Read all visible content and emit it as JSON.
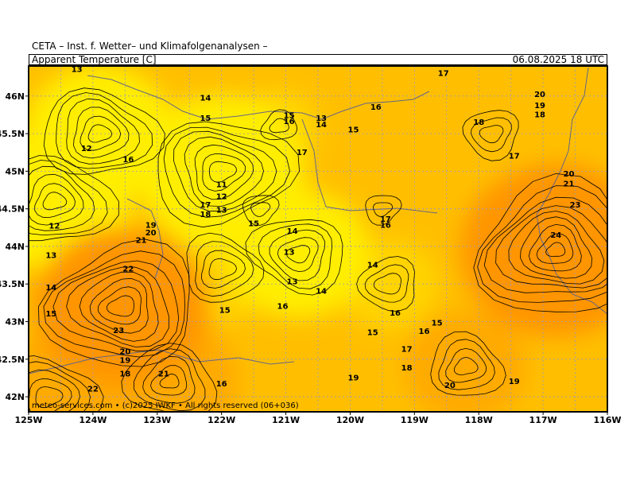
{
  "header": {
    "line1": "CETA – Inst. f. Wetter– und Klimafolgenanalysen –",
    "parameter": "Apparent Temperature [C]",
    "datetime": "06.08.2025  18 UTC"
  },
  "footer": {
    "credit": "meteo-services.com • (c)2025 IWKF • All rights reserved (06+036)"
  },
  "map": {
    "lon_range": [
      -125,
      -116
    ],
    "lat_range": [
      41.8,
      46.4
    ],
    "lon_ticks": [
      "125W",
      "124W",
      "123W",
      "122W",
      "121W",
      "120W",
      "119W",
      "118W",
      "117W",
      "116W"
    ],
    "lat_ticks": [
      {
        "lat": 46.0,
        "label": "46N"
      },
      {
        "lat": 45.5,
        "label": "45.5N"
      },
      {
        "lat": 45.0,
        "label": "45N"
      },
      {
        "lat": 44.5,
        "label": "44.5N"
      },
      {
        "lat": 44.0,
        "label": "44N"
      },
      {
        "lat": 43.5,
        "label": "43.5N"
      },
      {
        "lat": 43.0,
        "label": "43N"
      },
      {
        "lat": 42.5,
        "label": "42.5N"
      },
      {
        "lat": 42.0,
        "label": "42N"
      }
    ],
    "colors": {
      "t11": "#ffee00",
      "t14": "#ffd400",
      "t17": "#ffbf00",
      "t20": "#ffaa00",
      "t23": "#ff9500",
      "grid": "#9999bb",
      "border": "#666688",
      "contour": "#000000"
    },
    "contour_labels": [
      {
        "lon": -124.25,
        "lat": 46.35,
        "value": "13"
      },
      {
        "lon": -122.25,
        "lat": 45.97,
        "value": "14"
      },
      {
        "lon": -122.25,
        "lat": 45.7,
        "value": "15"
      },
      {
        "lon": -124.1,
        "lat": 45.3,
        "value": "12"
      },
      {
        "lon": -123.45,
        "lat": 45.15,
        "value": "16"
      },
      {
        "lon": -122.0,
        "lat": 44.82,
        "value": "11"
      },
      {
        "lon": -122.0,
        "lat": 44.66,
        "value": "12"
      },
      {
        "lon": -122.0,
        "lat": 44.48,
        "value": "13"
      },
      {
        "lon": -122.25,
        "lat": 44.55,
        "value": "17"
      },
      {
        "lon": -122.25,
        "lat": 44.42,
        "value": "18"
      },
      {
        "lon": -123.1,
        "lat": 44.28,
        "value": "19"
      },
      {
        "lon": -123.1,
        "lat": 44.18,
        "value": "20"
      },
      {
        "lon": -123.25,
        "lat": 44.08,
        "value": "21"
      },
      {
        "lon": -124.6,
        "lat": 44.27,
        "value": "12"
      },
      {
        "lon": -124.65,
        "lat": 43.88,
        "value": "13"
      },
      {
        "lon": -124.65,
        "lat": 43.45,
        "value": "14"
      },
      {
        "lon": -124.65,
        "lat": 43.1,
        "value": "15"
      },
      {
        "lon": -123.45,
        "lat": 43.7,
        "value": "22"
      },
      {
        "lon": -123.6,
        "lat": 42.88,
        "value": "23"
      },
      {
        "lon": -123.5,
        "lat": 42.6,
        "value": "20"
      },
      {
        "lon": -123.5,
        "lat": 42.48,
        "value": "19"
      },
      {
        "lon": -123.5,
        "lat": 42.3,
        "value": "18"
      },
      {
        "lon": -122.9,
        "lat": 42.3,
        "value": "21"
      },
      {
        "lon": -124.0,
        "lat": 42.1,
        "value": "22"
      },
      {
        "lon": -122.0,
        "lat": 42.17,
        "value": "16"
      },
      {
        "lon": -121.5,
        "lat": 44.3,
        "value": "15"
      },
      {
        "lon": -120.9,
        "lat": 44.2,
        "value": "14"
      },
      {
        "lon": -120.95,
        "lat": 43.92,
        "value": "13"
      },
      {
        "lon": -120.9,
        "lat": 43.53,
        "value": "13"
      },
      {
        "lon": -120.45,
        "lat": 43.4,
        "value": "14"
      },
      {
        "lon": -121.05,
        "lat": 43.2,
        "value": "16"
      },
      {
        "lon": -121.95,
        "lat": 43.15,
        "value": "15"
      },
      {
        "lon": -120.95,
        "lat": 45.74,
        "value": "15"
      },
      {
        "lon": -120.95,
        "lat": 45.66,
        "value": "16"
      },
      {
        "lon": -120.45,
        "lat": 45.7,
        "value": "13"
      },
      {
        "lon": -120.45,
        "lat": 45.62,
        "value": "14"
      },
      {
        "lon": -120.75,
        "lat": 45.25,
        "value": "17"
      },
      {
        "lon": -119.95,
        "lat": 45.55,
        "value": "15"
      },
      {
        "lon": -119.6,
        "lat": 45.85,
        "value": "16"
      },
      {
        "lon": -119.45,
        "lat": 44.36,
        "value": "17"
      },
      {
        "lon": -119.45,
        "lat": 44.28,
        "value": "16"
      },
      {
        "lon": -119.65,
        "lat": 43.75,
        "value": "14"
      },
      {
        "lon": -119.3,
        "lat": 43.11,
        "value": "16"
      },
      {
        "lon": -118.85,
        "lat": 42.87,
        "value": "16"
      },
      {
        "lon": -118.65,
        "lat": 42.98,
        "value": "15"
      },
      {
        "lon": -119.65,
        "lat": 42.85,
        "value": "15"
      },
      {
        "lon": -119.12,
        "lat": 42.63,
        "value": "17"
      },
      {
        "lon": -119.12,
        "lat": 42.38,
        "value": "18"
      },
      {
        "lon": -119.95,
        "lat": 42.25,
        "value": "19"
      },
      {
        "lon": -118.45,
        "lat": 42.15,
        "value": "20"
      },
      {
        "lon": -118.55,
        "lat": 46.3,
        "value": "17"
      },
      {
        "lon": -118.0,
        "lat": 45.65,
        "value": "18"
      },
      {
        "lon": -117.05,
        "lat": 46.02,
        "value": "20"
      },
      {
        "lon": -117.05,
        "lat": 45.87,
        "value": "19"
      },
      {
        "lon": -117.05,
        "lat": 45.75,
        "value": "18"
      },
      {
        "lon": -117.45,
        "lat": 45.2,
        "value": "17"
      },
      {
        "lon": -116.6,
        "lat": 44.96,
        "value": "20"
      },
      {
        "lon": -116.6,
        "lat": 44.83,
        "value": "21"
      },
      {
        "lon": -116.5,
        "lat": 44.55,
        "value": "23"
      },
      {
        "lon": -116.8,
        "lat": 44.15,
        "value": "24"
      },
      {
        "lon": -117.45,
        "lat": 42.2,
        "value": "19"
      }
    ],
    "contour_extrema": [
      {
        "lon": -121.1,
        "lat": 45.6,
        "value": 16.5
      },
      {
        "lon": -123.9,
        "lat": 45.5,
        "value": 12.0
      },
      {
        "lon": -122.0,
        "lat": 45.0,
        "value": 10.8
      },
      {
        "lon": -121.4,
        "lat": 44.5,
        "value": 16.6
      },
      {
        "lon": -120.8,
        "lat": 43.9,
        "value": 12.6
      },
      {
        "lon": -123.55,
        "lat": 43.2,
        "value": 23.6
      },
      {
        "lon": -116.8,
        "lat": 43.95,
        "value": 24.6
      },
      {
        "lon": -124.6,
        "lat": 44.6,
        "value": 11.8
      },
      {
        "lon": -124.7,
        "lat": 42.0,
        "value": 20.5
      },
      {
        "lon": -119.5,
        "lat": 44.5,
        "value": 17.6
      },
      {
        "lon": -117.8,
        "lat": 45.5,
        "value": 18.5
      },
      {
        "lon": -119.4,
        "lat": 43.5,
        "value": 15.2
      },
      {
        "lon": -122.8,
        "lat": 42.2,
        "value": 21.2
      },
      {
        "lon": -118.2,
        "lat": 42.4,
        "value": 20.2
      },
      {
        "lon": -122.0,
        "lat": 43.7,
        "value": 14.2
      }
    ]
  }
}
